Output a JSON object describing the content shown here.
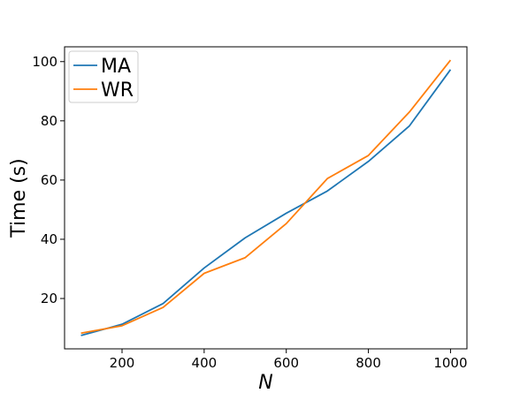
{
  "chart_data": {
    "type": "line",
    "title": "",
    "xlabel": "N",
    "ylabel": "Time (s)",
    "x": [
      100,
      200,
      300,
      400,
      500,
      600,
      700,
      800,
      900,
      1000
    ],
    "xlim": [
      60,
      1040
    ],
    "ylim": [
      3,
      105
    ],
    "xticks": [
      200,
      400,
      600,
      800,
      1000
    ],
    "yticks": [
      20,
      40,
      60,
      80,
      100
    ],
    "xtick_labels": [
      "200",
      "400",
      "600",
      "800",
      "1000"
    ],
    "ytick_labels": [
      "20",
      "40",
      "60",
      "80",
      "100"
    ],
    "grid": false,
    "legend_position": "top-left",
    "series": [
      {
        "name": "MA",
        "color": "#1f77b4",
        "values": [
          7.5,
          11.3,
          18.3,
          30.3,
          40.5,
          48.8,
          56.3,
          66.3,
          78.3,
          97.3
        ]
      },
      {
        "name": "WR",
        "color": "#ff7f0e",
        "values": [
          8.3,
          10.8,
          17.0,
          28.5,
          33.8,
          45.3,
          60.5,
          68.3,
          83.0,
          100.5
        ]
      }
    ]
  }
}
